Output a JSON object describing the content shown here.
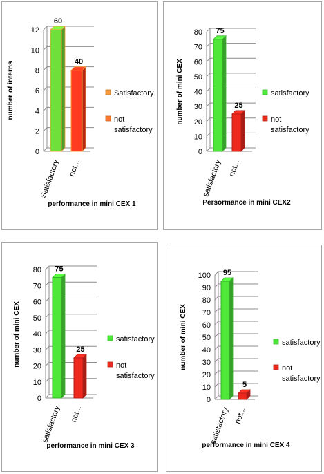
{
  "chart_data": [
    {
      "type": "bar",
      "categories": [
        "Satisfactory",
        "not..."
      ],
      "values": [
        12,
        8
      ],
      "data_labels": [
        "60",
        "40"
      ],
      "ylabel": "number of interns",
      "xlabel": "performance in mini CEX 1",
      "ylim": [
        0,
        12
      ],
      "yticks": [
        "0",
        "2",
        "4",
        "6",
        "8",
        "10",
        "12"
      ],
      "ytick_values": [
        0,
        2,
        4,
        6,
        8,
        10,
        12
      ],
      "legend": [
        {
          "lines": [
            "Satisfactory"
          ],
          "color": "#f59a3e"
        },
        {
          "lines": [
            "not",
            "satisfactory"
          ],
          "color": "#ff7a30"
        }
      ],
      "colors": [
        "#6fe03a",
        "#ff3b22"
      ],
      "outline": "#f59a3e",
      "grid": true,
      "legend_position": "right"
    },
    {
      "type": "bar",
      "categories": [
        "satisfactory",
        "not..."
      ],
      "values": [
        75,
        25
      ],
      "data_labels": [
        "75",
        "25"
      ],
      "ylabel": "number of mini CEX",
      "xlabel": "Persormance in mini CEX2",
      "ylim": [
        0,
        80
      ],
      "yticks": [
        "0",
        "10",
        "20",
        "30",
        "40",
        "50",
        "60",
        "70",
        "80"
      ],
      "ytick_values": [
        0,
        10,
        20,
        30,
        40,
        50,
        60,
        70,
        80
      ],
      "legend": [
        {
          "lines": [
            "satisfactory"
          ],
          "color": "#4fe83a"
        },
        {
          "lines": [
            "not",
            "satisfactory"
          ],
          "color": "#ee2a1f"
        }
      ],
      "colors": [
        "#4fe83a",
        "#ee2a1f"
      ],
      "grid": true,
      "legend_position": "right"
    },
    {
      "type": "bar",
      "categories": [
        "satisfactory",
        "not..."
      ],
      "values": [
        75,
        25
      ],
      "data_labels": [
        "75",
        "25"
      ],
      "ylabel": "number of mini CEX",
      "xlabel": "performance in mini CEX 3",
      "ylim": [
        0,
        80
      ],
      "yticks": [
        "0",
        "10",
        "20",
        "30",
        "40",
        "50",
        "60",
        "70",
        "80"
      ],
      "ytick_values": [
        0,
        10,
        20,
        30,
        40,
        50,
        60,
        70,
        80
      ],
      "legend": [
        {
          "lines": [
            "satisfactory"
          ],
          "color": "#4fe83a"
        },
        {
          "lines": [
            "not",
            "satisfactory"
          ],
          "color": "#ee2a1f"
        }
      ],
      "colors": [
        "#4fe83a",
        "#ee2a1f"
      ],
      "grid": true,
      "legend_position": "right"
    },
    {
      "type": "bar",
      "categories": [
        "satisfactory",
        "not..."
      ],
      "values": [
        95,
        5
      ],
      "data_labels": [
        "95",
        "5"
      ],
      "ylabel": "number of mini CEX",
      "xlabel": "performance in mini CEX 4",
      "ylim": [
        0,
        100
      ],
      "yticks": [
        "0",
        "10",
        "20",
        "30",
        "40",
        "50",
        "60",
        "70",
        "80",
        "90",
        "100"
      ],
      "ytick_values": [
        0,
        10,
        20,
        30,
        40,
        50,
        60,
        70,
        80,
        90,
        100
      ],
      "legend": [
        {
          "lines": [
            "satisfactory"
          ],
          "color": "#4fe83a"
        },
        {
          "lines": [
            "not",
            "satisfactory"
          ],
          "color": "#ee2a1f"
        }
      ],
      "colors": [
        "#4fe83a",
        "#ee2a1f"
      ],
      "grid": true,
      "legend_position": "right"
    }
  ]
}
